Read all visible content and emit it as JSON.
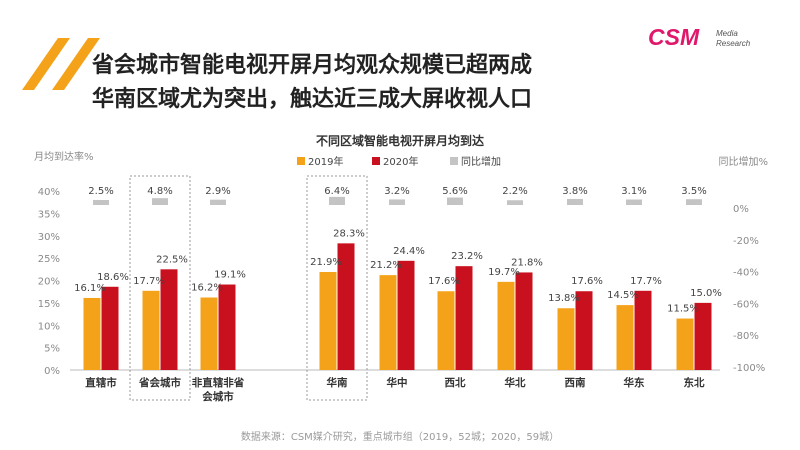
{
  "headline": {
    "line1": "省会城市智能电视开屏月均观众规模已超两成",
    "line2": "华南区域尤为突出，触达近三成大屏收视人口"
  },
  "logo": {
    "brand": "CSM",
    "line1": "Media",
    "line2": "Research",
    "color": "#e0186b"
  },
  "source_note": "数据来源：CSM媒介研究，重点城市组（2019，52城；2020，59城）",
  "colors": {
    "y2019": "#f5a21b",
    "y2020": "#c8101e",
    "change": "#c4c4c4",
    "accent": "#f0a020"
  },
  "chart_data": {
    "type": "bar",
    "title": "不同区域智能电视开屏月均到达",
    "ylabel": "月均到达率%",
    "y2label": "同比增加%",
    "ylim": [
      0,
      40
    ],
    "y2lim": [
      -100,
      0
    ],
    "yticks": [
      "0%",
      "5%",
      "10%",
      "15%",
      "20%",
      "25%",
      "30%",
      "35%",
      "40%"
    ],
    "y2ticks": [
      "0%",
      "-20%",
      "-40%",
      "-60%",
      "-80%",
      "-100%"
    ],
    "categories": [
      [
        "直辖市"
      ],
      [
        "省会城市"
      ],
      [
        "非直辖非省",
        "会城市"
      ],
      [
        "华南"
      ],
      [
        "华中"
      ],
      [
        "西北"
      ],
      [
        "华北"
      ],
      [
        "西南"
      ],
      [
        "华东"
      ],
      [
        "东北"
      ]
    ],
    "highlighted": [
      1,
      3
    ],
    "legend": [
      "2019年",
      "2020年",
      "同比增加"
    ],
    "series": [
      {
        "name": "2019年",
        "values": [
          16.1,
          17.7,
          16.2,
          21.9,
          21.2,
          17.6,
          19.7,
          13.8,
          14.5,
          11.5
        ],
        "labels": [
          "16.1%",
          "17.7%",
          "16.2%",
          "21.9%",
          "21.2%",
          "17.6%",
          "19.7%",
          "13.8%",
          "14.5%",
          "11.5%"
        ]
      },
      {
        "name": "2020年",
        "values": [
          18.6,
          22.5,
          19.1,
          28.3,
          24.4,
          23.2,
          21.8,
          17.6,
          17.7,
          15.0
        ],
        "labels": [
          "18.6%",
          "22.5%",
          "19.1%",
          "28.3%",
          "24.4%",
          "23.2%",
          "21.8%",
          "17.6%",
          "17.7%",
          "15.0%"
        ]
      },
      {
        "name": "同比增加",
        "values": [
          2.5,
          4.8,
          2.9,
          6.4,
          3.2,
          5.6,
          2.2,
          3.8,
          3.1,
          3.5
        ],
        "labels": [
          "2.5%",
          "4.8%",
          "2.9%",
          "6.4%",
          "3.2%",
          "5.6%",
          "2.2%",
          "3.8%",
          "3.1%",
          "3.5%"
        ]
      }
    ],
    "grid": false,
    "legend_position": "top-center"
  }
}
